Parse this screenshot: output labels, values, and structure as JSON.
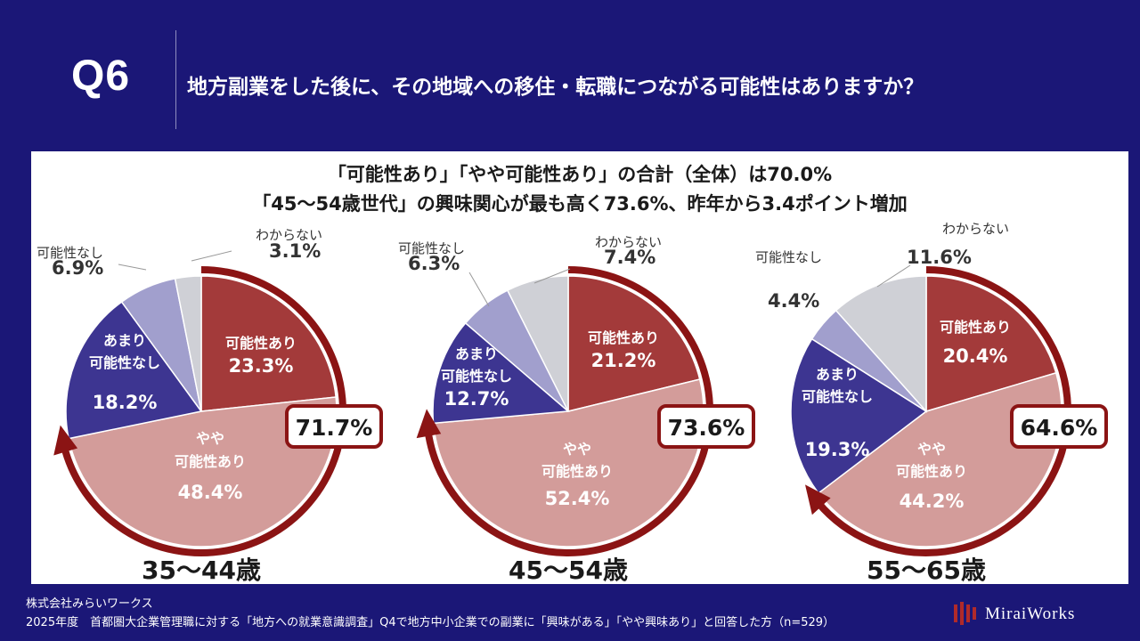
{
  "header": {
    "q_number": "Q6",
    "question": "地方副業をした後に、その地域への移住・転職につながる可能性はありますか？"
  },
  "headline": {
    "line1": "「可能性あり」「やや可能性あり」の合計（全体）は70.0%",
    "line2": "「45～54歳世代」の興味関心が最も高く73.6%、昨年から3.4ポイント増加"
  },
  "chart_data": [
    {
      "type": "pie",
      "title": "35～44歳",
      "slices": [
        {
          "label": "可能性あり",
          "value": 23.3,
          "color": "#a33a3a"
        },
        {
          "label": "やや可能性あり",
          "value": 48.4,
          "color": "#d39c9a"
        },
        {
          "label": "あまり可能性なし",
          "value": 18.2,
          "color": "#3d3591"
        },
        {
          "label": "可能性なし",
          "value": 6.9,
          "color": "#a19fcd"
        },
        {
          "label": "わからない",
          "value": 3.1,
          "color": "#cfd0d6"
        }
      ],
      "total_positive": "71.7%"
    },
    {
      "type": "pie",
      "title": "45～54歳",
      "slices": [
        {
          "label": "可能性あり",
          "value": 21.2,
          "color": "#a33a3a"
        },
        {
          "label": "やや可能性あり",
          "value": 52.4,
          "color": "#d39c9a"
        },
        {
          "label": "あまり可能性なし",
          "value": 12.7,
          "color": "#3d3591"
        },
        {
          "label": "可能性なし",
          "value": 6.3,
          "color": "#a19fcd"
        },
        {
          "label": "わからない",
          "value": 7.4,
          "color": "#cfd0d6"
        }
      ],
      "total_positive": "73.6%"
    },
    {
      "type": "pie",
      "title": "55～65歳",
      "slices": [
        {
          "label": "可能性あり",
          "value": 20.4,
          "color": "#a33a3a"
        },
        {
          "label": "やや可能性あり",
          "value": 44.2,
          "color": "#d39c9a"
        },
        {
          "label": "あまり可能性なし",
          "value": 19.3,
          "color": "#3d3591"
        },
        {
          "label": "可能性なし",
          "value": 4.4,
          "color": "#a19fcd"
        },
        {
          "label": "わからない",
          "value": 11.6,
          "color": "#cfd0d6"
        }
      ],
      "total_positive": "64.6%"
    }
  ],
  "footer": {
    "company": "株式会社みらいワークス",
    "note": "2025年度　首都圏大企業管理職に対する「地方への就業意識調査」Q4で地方中小企業での副業に「興味がある」「やや興味あり」と回答した方（n=529）",
    "logo": "MiraiWorks"
  },
  "colors": {
    "background": "#1b1777",
    "arrow": "#8b1414"
  }
}
